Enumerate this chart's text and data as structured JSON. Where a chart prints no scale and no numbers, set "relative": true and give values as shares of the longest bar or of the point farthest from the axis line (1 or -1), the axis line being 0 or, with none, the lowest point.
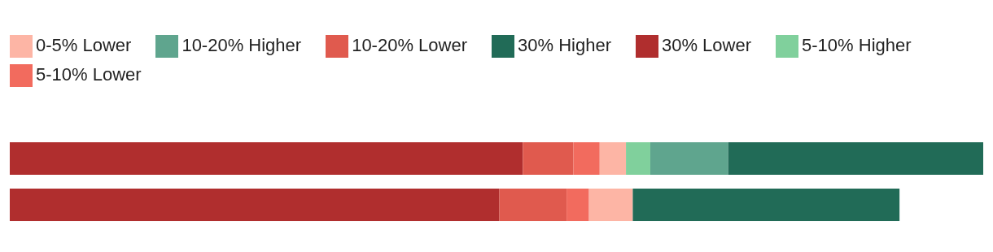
{
  "chart_data": {
    "type": "bar",
    "orientation": "horizontal",
    "stacked": true,
    "relative": true,
    "legend": "top left",
    "categories": [
      null,
      null
    ],
    "series": [
      {
        "name": "30% Lower",
        "color": "#b02e2e",
        "values": [
          0.527,
          0.503
        ]
      },
      {
        "name": "10-20% Lower",
        "color": "#e05a4e",
        "values": [
          0.052,
          0.069
        ]
      },
      {
        "name": "5-10% Lower",
        "color": "#f26b5e",
        "values": [
          0.027,
          0.023
        ]
      },
      {
        "name": "0-5% Lower",
        "color": "#fdb5a5",
        "values": [
          0.027,
          0.045
        ]
      },
      {
        "name": "5-10% Higher",
        "color": "#80d09c",
        "values": [
          0.025,
          0
        ]
      },
      {
        "name": "10-20% Higher",
        "color": "#5fa58e",
        "values": [
          0.08,
          0
        ]
      },
      {
        "name": "30% Higher",
        "color": "#216b57",
        "values": [
          0.262,
          0.274
        ]
      }
    ]
  }
}
